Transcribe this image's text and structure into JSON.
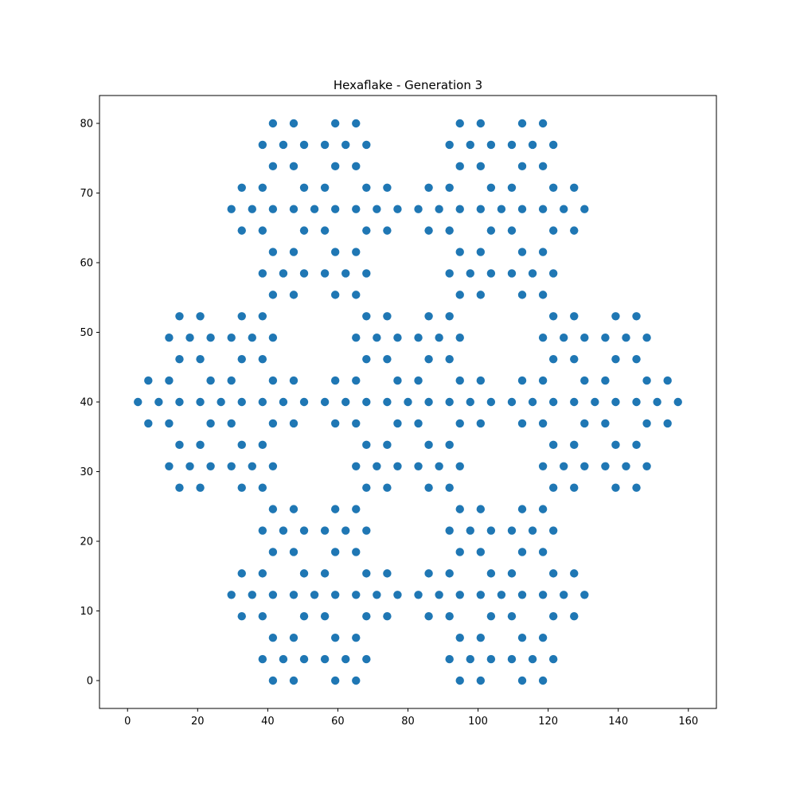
{
  "chart_data": {
    "type": "scatter",
    "title": "Hexaflake - Generation 3",
    "xlabel": "",
    "ylabel": "",
    "xlim": [
      -8,
      168
    ],
    "ylim": [
      -4,
      84
    ],
    "xticks": [
      0,
      20,
      40,
      60,
      80,
      100,
      120,
      140,
      160
    ],
    "yticks": [
      0,
      10,
      20,
      30,
      40,
      50,
      60,
      70,
      80
    ],
    "x_tick_labels": [
      "0",
      "20",
      "40",
      "60",
      "80",
      "100",
      "120",
      "140",
      "160"
    ],
    "y_tick_labels": [
      "0",
      "10",
      "20",
      "30",
      "40",
      "50",
      "60",
      "70",
      "80"
    ],
    "grid": false,
    "legend": "none",
    "marker_color": "#1f77b4",
    "generation": 3,
    "center": [
      80,
      40
    ],
    "unit_spacing": 1.0,
    "series": [
      {
        "values_description_rule": "hexaflake_gen3"
      }
    ]
  }
}
